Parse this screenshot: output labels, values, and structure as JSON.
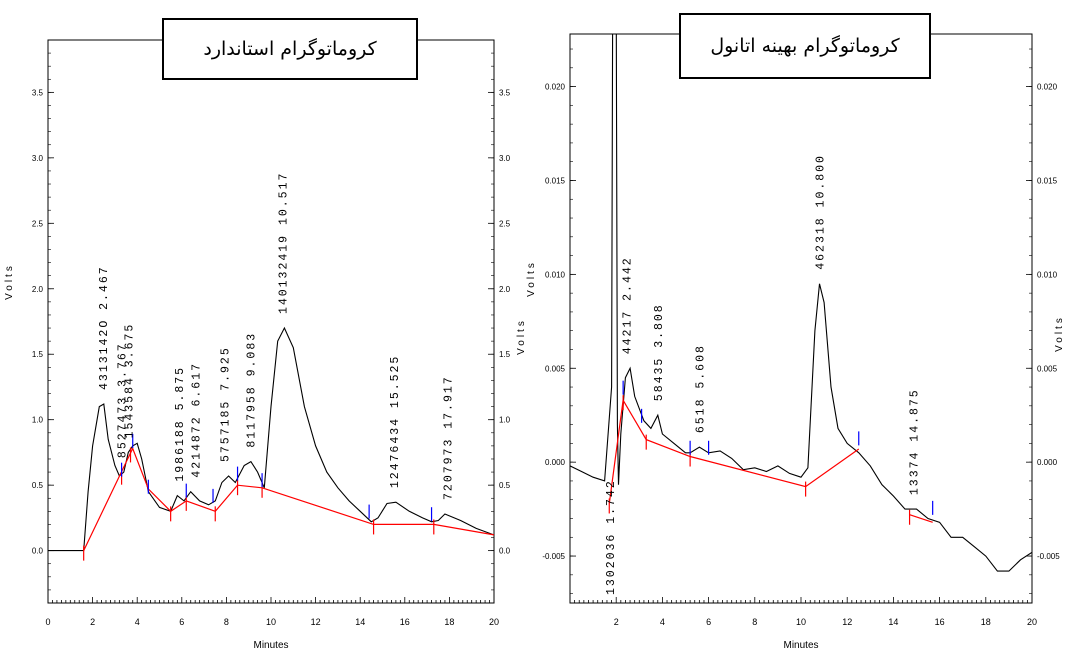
{
  "colors": {
    "trace": "#000000",
    "baseline": "#ff0000",
    "start_marker": "#ff0000",
    "end_marker": "#0000ff"
  },
  "chart_data": [
    {
      "type": "line",
      "title": "کروماتوگرام استاندارد",
      "xlabel": "Minutes",
      "ylabel_left": "Volts",
      "ylabel_right": "Volts",
      "xlim": [
        0,
        20
      ],
      "ylim": [
        -0.4,
        3.9
      ],
      "x_ticks": [
        0,
        2,
        4,
        6,
        8,
        10,
        12,
        14,
        16,
        18,
        20
      ],
      "y_ticks": [
        "0.0",
        "0.5",
        "1.0",
        "1.5",
        "2.0",
        "2.5",
        "3.0",
        "3.5"
      ],
      "x_tick_labels": [
        "0",
        "2",
        "4",
        "6",
        "8",
        "10",
        "12",
        "14",
        "16",
        "18",
        "20"
      ],
      "series": [
        {
          "points": [
            [
              0,
              0
            ],
            [
              1.6,
              0
            ],
            [
              1.8,
              0.45
            ],
            [
              2.0,
              0.8
            ],
            [
              2.3,
              1.1
            ],
            [
              2.5,
              1.12
            ],
            [
              2.7,
              0.85
            ],
            [
              3.0,
              0.65
            ],
            [
              3.2,
              0.57
            ],
            [
              3.4,
              0.6
            ],
            [
              3.6,
              0.75
            ],
            [
              3.8,
              0.8
            ],
            [
              4.0,
              0.82
            ],
            [
              4.2,
              0.7
            ],
            [
              4.5,
              0.45
            ],
            [
              5.0,
              0.33
            ],
            [
              5.5,
              0.3
            ],
            [
              5.8,
              0.42
            ],
            [
              6.1,
              0.38
            ],
            [
              6.4,
              0.45
            ],
            [
              6.8,
              0.38
            ],
            [
              7.2,
              0.35
            ],
            [
              7.5,
              0.38
            ],
            [
              7.8,
              0.52
            ],
            [
              8.1,
              0.57
            ],
            [
              8.4,
              0.52
            ],
            [
              8.8,
              0.65
            ],
            [
              9.1,
              0.68
            ],
            [
              9.4,
              0.6
            ],
            [
              9.7,
              0.48
            ],
            [
              10.0,
              1.1
            ],
            [
              10.3,
              1.6
            ],
            [
              10.6,
              1.7
            ],
            [
              11.0,
              1.55
            ],
            [
              11.5,
              1.1
            ],
            [
              12.0,
              0.8
            ],
            [
              12.5,
              0.6
            ],
            [
              13.0,
              0.48
            ],
            [
              13.5,
              0.38
            ],
            [
              14.0,
              0.3
            ],
            [
              14.5,
              0.22
            ],
            [
              14.8,
              0.25
            ],
            [
              15.2,
              0.36
            ],
            [
              15.6,
              0.37
            ],
            [
              16.2,
              0.3
            ],
            [
              16.8,
              0.25
            ],
            [
              17.2,
              0.22
            ],
            [
              17.5,
              0.23
            ],
            [
              17.8,
              0.28
            ],
            [
              18.5,
              0.23
            ],
            [
              19.2,
              0.17
            ],
            [
              20,
              0.12
            ]
          ]
        }
      ],
      "baseline_points": [
        [
          1.6,
          0
        ],
        [
          3.8,
          0.78
        ],
        [
          4.5,
          0.47
        ],
        [
          5.5,
          0.3
        ],
        [
          6.2,
          0.38
        ],
        [
          7.5,
          0.3
        ],
        [
          8.5,
          0.5
        ],
        [
          9.6,
          0.48
        ],
        [
          14.6,
          0.2
        ],
        [
          17.3,
          0.2
        ],
        [
          20,
          0.12
        ]
      ],
      "start_markers": [
        [
          1.6,
          0
        ],
        [
          3.3,
          0.58
        ],
        [
          3.7,
          0.75
        ],
        [
          5.5,
          0.3
        ],
        [
          6.2,
          0.38
        ],
        [
          7.5,
          0.3
        ],
        [
          8.5,
          0.5
        ],
        [
          9.6,
          0.48
        ],
        [
          14.6,
          0.2
        ],
        [
          17.3,
          0.2
        ]
      ],
      "end_markers": [
        [
          3.3,
          0.58
        ],
        [
          3.8,
          0.8
        ],
        [
          4.5,
          0.45
        ],
        [
          6.2,
          0.42
        ],
        [
          7.4,
          0.38
        ],
        [
          8.5,
          0.55
        ],
        [
          9.6,
          0.5
        ],
        [
          14.4,
          0.26
        ],
        [
          17.2,
          0.24
        ]
      ],
      "peak_labels": [
        {
          "x": 2.467,
          "text": "4313142O 2.467"
        },
        {
          "x": 3.3,
          "text": "8527473 3.767"
        },
        {
          "x": 3.6,
          "text": "1543584 3.675"
        },
        {
          "x": 5.875,
          "text": "1986188 5.875"
        },
        {
          "x": 6.617,
          "text": "4214872 6.617"
        },
        {
          "x": 7.925,
          "text": "5757185 7.925"
        },
        {
          "x": 9.083,
          "text": "8117958 9.083"
        },
        {
          "x": 10.517,
          "text": "140132419 10.517"
        },
        {
          "x": 15.525,
          "text": "12476434 15.525"
        },
        {
          "x": 17.917,
          "text": "7207973 17.917"
        }
      ]
    },
    {
      "type": "line",
      "title": "کروماتوگرام بهینه اتانول",
      "xlabel": "Minutes",
      "ylabel_left": "Volts",
      "ylabel_right": "Volts",
      "xlim": [
        0,
        20
      ],
      "ylim": [
        -0.0075,
        0.0228
      ],
      "x_ticks": [
        2,
        4,
        6,
        8,
        10,
        12,
        14,
        16,
        18,
        20
      ],
      "y_ticks": [
        "-0.005",
        "0.000",
        "0.005",
        "0.010",
        "0.015",
        "0.020"
      ],
      "x_tick_labels": [
        "2",
        "4",
        "6",
        "8",
        "10",
        "12",
        "14",
        "16",
        "18",
        "20"
      ],
      "series": [
        {
          "points": [
            [
              0,
              -0.0002
            ],
            [
              0.5,
              -0.0005
            ],
            [
              1.0,
              -0.0008
            ],
            [
              1.5,
              -0.001
            ],
            [
              1.8,
              0.004
            ],
            [
              1.85,
              0.025
            ],
            [
              2.0,
              0.025
            ],
            [
              2.05,
              0.002
            ],
            [
              2.1,
              -0.0012
            ],
            [
              2.2,
              0.0015
            ],
            [
              2.4,
              0.0045
            ],
            [
              2.6,
              0.005
            ],
            [
              2.8,
              0.0035
            ],
            [
              3.2,
              0.0022
            ],
            [
              3.5,
              0.0018
            ],
            [
              3.8,
              0.0025
            ],
            [
              4.0,
              0.0015
            ],
            [
              4.5,
              0.001
            ],
            [
              5.0,
              0.0005
            ],
            [
              5.2,
              0.0005
            ],
            [
              5.6,
              0.0008
            ],
            [
              6.0,
              0.0005
            ],
            [
              6.5,
              0.0006
            ],
            [
              7.0,
              0.0002
            ],
            [
              7.5,
              -0.0004
            ],
            [
              8.0,
              -0.0003
            ],
            [
              8.5,
              -0.0005
            ],
            [
              9.0,
              -0.0002
            ],
            [
              9.5,
              -0.0006
            ],
            [
              10.0,
              -0.0008
            ],
            [
              10.3,
              -0.0003
            ],
            [
              10.6,
              0.007
            ],
            [
              10.8,
              0.0095
            ],
            [
              11.0,
              0.0085
            ],
            [
              11.3,
              0.004
            ],
            [
              11.6,
              0.0018
            ],
            [
              12.0,
              0.001
            ],
            [
              12.5,
              0.0005
            ],
            [
              13.0,
              -0.0002
            ],
            [
              13.5,
              -0.0012
            ],
            [
              14.0,
              -0.0018
            ],
            [
              14.5,
              -0.0025
            ],
            [
              15.0,
              -0.0025
            ],
            [
              15.5,
              -0.003
            ],
            [
              16.0,
              -0.0032
            ],
            [
              16.5,
              -0.004
            ],
            [
              17.0,
              -0.004
            ],
            [
              17.5,
              -0.0045
            ],
            [
              18.0,
              -0.005
            ],
            [
              18.5,
              -0.0058
            ],
            [
              19.0,
              -0.0058
            ],
            [
              19.5,
              -0.0052
            ],
            [
              20,
              -0.0048
            ]
          ]
        }
      ],
      "baseline_points": [
        [
          1.7,
          -0.0022
        ],
        [
          2.3,
          0.0033
        ],
        [
          3.3,
          0.0012
        ],
        [
          5.2,
          0.0003
        ],
        [
          10.2,
          -0.0013
        ],
        [
          12.5,
          0.0007
        ]
      ],
      "baseline2_points": [
        [
          14.7,
          -0.0028
        ],
        [
          15.7,
          -0.0032
        ]
      ],
      "start_markers": [
        [
          1.7,
          -0.0022
        ],
        [
          2.3,
          0.0033
        ],
        [
          3.3,
          0.0012
        ],
        [
          5.2,
          0.0003
        ],
        [
          10.2,
          -0.0013
        ],
        [
          14.7,
          -0.0028
        ]
      ],
      "end_markers": [
        [
          2.3,
          0.0037
        ],
        [
          3.1,
          0.0022
        ],
        [
          5.2,
          0.0005
        ],
        [
          6.0,
          0.0005
        ],
        [
          12.5,
          0.001
        ],
        [
          15.7,
          -0.0027
        ]
      ],
      "peak_labels": [
        {
          "x": 1.742,
          "text": "1302036 1.742",
          "below": true
        },
        {
          "x": 2.442,
          "text": "44217 2.442"
        },
        {
          "x": 3.808,
          "text": "58435 3.808"
        },
        {
          "x": 5.608,
          "text": "6518 5.608"
        },
        {
          "x": 10.8,
          "text": "462318 10.800"
        },
        {
          "x": 14.875,
          "text": "13374 14.875"
        }
      ]
    }
  ]
}
